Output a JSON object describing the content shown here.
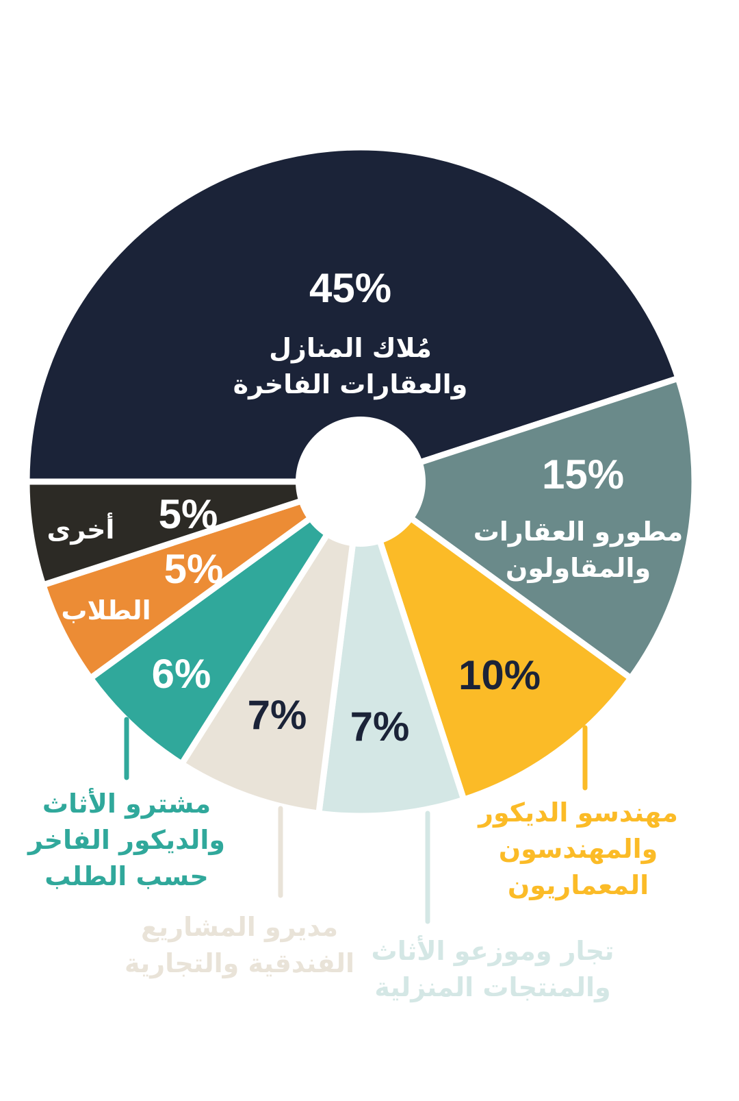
{
  "chart_data": {
    "type": "pie",
    "categories": [
      "مُلاك المنازل\nوالعقارات الفاخرة",
      "مطورو العقارات\nوالمقاولون",
      "مهندسو الديكور\nوالمهندسون\nالمعماريون",
      "تجار وموزعو الأثاث\nوالمنتجات المنزلية",
      "مديرو المشاريع\nالفندقية والتجارية",
      "مشترو الأثاث\nوالديكور الفاخر\nحسب الطلب",
      "الطلاب",
      "أخرى"
    ],
    "values": [
      45,
      15,
      10,
      7,
      7,
      6,
      5,
      5
    ],
    "value_labels": [
      "45%",
      "15%",
      "10%",
      "7%",
      "7%",
      "6%",
      "5%",
      "5%"
    ],
    "colors": [
      "#1b2338",
      "#6a8a8a",
      "#fbbb27",
      "#d4e7e5",
      "#e9e3d8",
      "#30a89b",
      "#ec8c35",
      "#2c2a25"
    ]
  }
}
